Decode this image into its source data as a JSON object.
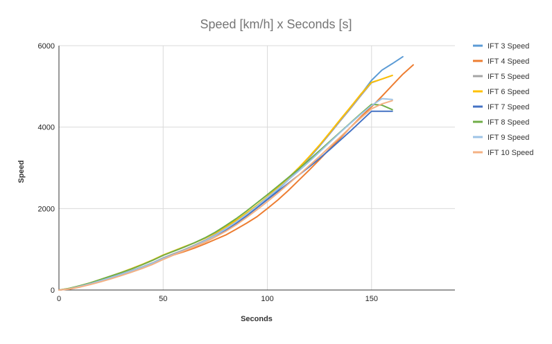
{
  "chart_data": {
    "type": "line",
    "title": "Speed [km/h] x Seconds [s]",
    "xlabel": "Seconds",
    "ylabel": "Speed",
    "xlim": [
      0,
      190
    ],
    "ylim": [
      0,
      6000
    ],
    "x_ticks": [
      0,
      50,
      100,
      150
    ],
    "y_ticks": [
      0,
      2000,
      4000,
      6000
    ],
    "grid": true,
    "legend_position": "right",
    "series": [
      {
        "name": "IFT 3 Speed",
        "color": "#5B9BD5",
        "x": [
          0,
          5,
          10,
          15,
          20,
          25,
          30,
          35,
          40,
          45,
          50,
          55,
          60,
          65,
          70,
          75,
          80,
          85,
          90,
          95,
          100,
          105,
          110,
          115,
          120,
          125,
          130,
          135,
          140,
          145,
          150,
          155,
          160,
          165
        ],
        "values": [
          0,
          30,
          90,
          155,
          230,
          310,
          390,
          470,
          560,
          660,
          770,
          870,
          970,
          1070,
          1190,
          1330,
          1480,
          1650,
          1830,
          2030,
          2240,
          2460,
          2700,
          2960,
          3240,
          3530,
          3840,
          4160,
          4480,
          4810,
          5150,
          5400,
          5560,
          5730
        ]
      },
      {
        "name": "IFT 4 Speed",
        "color": "#ED7D31",
        "x": [
          0,
          5,
          10,
          15,
          20,
          25,
          30,
          35,
          40,
          45,
          50,
          55,
          60,
          65,
          70,
          75,
          80,
          85,
          90,
          95,
          100,
          105,
          110,
          115,
          120,
          125,
          130,
          135,
          140,
          145,
          150,
          155,
          160,
          165,
          170
        ],
        "values": [
          0,
          20,
          75,
          140,
          215,
          290,
          370,
          450,
          540,
          640,
          770,
          860,
          940,
          1030,
          1130,
          1240,
          1350,
          1490,
          1640,
          1800,
          2000,
          2210,
          2440,
          2690,
          2940,
          3200,
          3470,
          3730,
          4000,
          4260,
          4500,
          4760,
          5030,
          5300,
          5530
        ]
      },
      {
        "name": "IFT 5 Speed",
        "color": "#A5A5A5",
        "x": [
          0,
          5,
          10,
          15,
          20,
          25,
          30,
          35,
          40,
          45,
          50,
          55,
          60,
          65,
          70,
          75,
          80,
          85,
          90,
          95,
          100,
          105,
          110,
          115,
          120,
          125,
          130,
          135,
          140,
          145,
          150,
          155,
          160
        ],
        "values": [
          0,
          30,
          90,
          155,
          230,
          310,
          395,
          480,
          570,
          670,
          790,
          890,
          990,
          1100,
          1220,
          1360,
          1510,
          1680,
          1860,
          2060,
          2270,
          2490,
          2730,
          2980,
          3250,
          3540,
          3840,
          4150,
          4460,
          4780,
          5090,
          5180,
          5270
        ]
      },
      {
        "name": "IFT 6 Speed",
        "color": "#FFC000",
        "x": [
          0,
          5,
          10,
          15,
          20,
          25,
          30,
          35,
          40,
          45,
          50,
          55,
          60,
          65,
          70,
          75,
          80,
          85,
          90,
          95,
          100,
          105,
          110,
          115,
          120,
          125,
          130,
          135,
          140,
          145,
          150,
          155,
          160
        ],
        "values": [
          0,
          40,
          105,
          175,
          260,
          345,
          435,
          530,
          630,
          740,
          860,
          960,
          1060,
          1160,
          1270,
          1400,
          1550,
          1710,
          1890,
          2080,
          2290,
          2510,
          2750,
          3000,
          3270,
          3560,
          3870,
          4190,
          4500,
          4820,
          5100,
          5180,
          5270
        ]
      },
      {
        "name": "IFT 7 Speed",
        "color": "#4472C4",
        "x": [
          0,
          5,
          10,
          15,
          20,
          25,
          30,
          35,
          40,
          45,
          50,
          55,
          60,
          65,
          70,
          75,
          80,
          85,
          90,
          95,
          100,
          105,
          110,
          115,
          120,
          125,
          130,
          135,
          140,
          145,
          150,
          155,
          160
        ],
        "values": [
          0,
          30,
          90,
          155,
          230,
          310,
          390,
          470,
          560,
          660,
          770,
          870,
          970,
          1070,
          1180,
          1310,
          1460,
          1630,
          1820,
          2020,
          2220,
          2420,
          2620,
          2820,
          3020,
          3230,
          3450,
          3680,
          3910,
          4150,
          4390,
          4390,
          4390
        ]
      },
      {
        "name": "IFT 8 Speed",
        "color": "#70AD47",
        "x": [
          0,
          5,
          10,
          15,
          20,
          25,
          30,
          35,
          40,
          45,
          50,
          55,
          60,
          65,
          70,
          75,
          80,
          85,
          90,
          95,
          100,
          105,
          110,
          115,
          120,
          125,
          130,
          135,
          140,
          145,
          150,
          155,
          160
        ],
        "values": [
          0,
          40,
          105,
          175,
          260,
          345,
          430,
          520,
          620,
          730,
          850,
          950,
          1050,
          1160,
          1280,
          1420,
          1580,
          1750,
          1940,
          2140,
          2340,
          2550,
          2760,
          2970,
          3190,
          3420,
          3650,
          3880,
          4110,
          4340,
          4560,
          4540,
          4430
        ]
      },
      {
        "name": "IFT 9 Speed",
        "color": "#9DC3E6",
        "x": [
          0,
          5,
          10,
          15,
          20,
          25,
          30,
          35,
          40,
          45,
          50,
          55,
          60,
          65,
          70,
          75,
          80,
          85,
          90,
          95,
          100,
          105,
          110,
          115,
          120,
          125,
          130,
          135,
          140,
          145,
          150,
          155,
          160
        ],
        "values": [
          0,
          30,
          90,
          155,
          230,
          310,
          390,
          470,
          560,
          660,
          770,
          870,
          970,
          1080,
          1200,
          1340,
          1500,
          1670,
          1860,
          2060,
          2270,
          2480,
          2700,
          2920,
          3150,
          3390,
          3630,
          3870,
          4100,
          4320,
          4530,
          4700,
          4680
        ]
      },
      {
        "name": "IFT 10 Speed",
        "color": "#F4B183",
        "x": [
          0,
          5,
          10,
          15,
          20,
          25,
          30,
          35,
          40,
          45,
          50,
          55,
          60,
          65,
          70,
          75,
          80,
          85,
          90,
          95,
          100,
          105,
          110,
          115,
          120,
          125,
          130,
          135,
          140,
          145,
          150,
          155,
          160
        ],
        "values": [
          0,
          25,
          75,
          135,
          200,
          275,
          355,
          440,
          530,
          630,
          750,
          860,
          960,
          1060,
          1170,
          1300,
          1440,
          1600,
          1780,
          1970,
          2170,
          2380,
          2600,
          2820,
          3050,
          3280,
          3520,
          3760,
          4000,
          4230,
          4450,
          4570,
          4650
        ]
      }
    ]
  }
}
